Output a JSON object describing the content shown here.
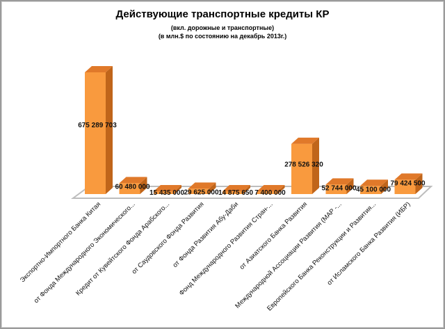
{
  "chart_data": {
    "type": "bar",
    "title": "Действующие транспортные кредиты КР",
    "subtitle_1": "(вкл. дорожные и транспортные)",
    "subtitle_2": "(в млн.$ по состоянию на декабрь 2013г.)",
    "categories": [
      "Экспортно-Импортного Банка Китая",
      "от Фонда Международного Экономического...",
      "Кредит от Кувейтского Фонда Арабского...",
      "от Саудовского Фонда Развития",
      "от Фонда Развития Абу-Даби",
      "Фонд Международного Развития Стран-...",
      "от Азиатского Банка Развития",
      "Международной Ассоциации Развития (МАР -...",
      "Европейского Банка Реконструкции и Развития...",
      "от Исламского Банка Развития (ИБР)"
    ],
    "values": [
      675289703,
      60480000,
      15435000,
      29625000,
      14875650,
      7400000,
      278526320,
      52744000,
      45100000,
      79424500
    ],
    "data_labels": [
      "675 289 703",
      "60 480 000",
      "15 435 000",
      "29 625 000",
      "14 875 650",
      "7 400 000",
      "278 526 320",
      "52 744 000",
      "45 100 000",
      "79 424 500"
    ],
    "ylim": [
      0,
      700000000
    ],
    "grid": false,
    "legend": "none",
    "colors": {
      "front": "#f99a3e",
      "side": "#c0651a",
      "top": "#e0792a"
    }
  }
}
